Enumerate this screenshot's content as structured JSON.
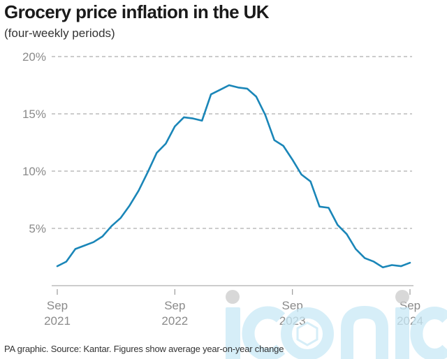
{
  "title": "Grocery price inflation in the UK",
  "subtitle": "(four-weekly periods)",
  "footer": "PA graphic. Source: Kantar. Figures show average year-on-year change",
  "watermark_text": "iconic",
  "colors": {
    "line": "#1a86b8",
    "grid": "#9a9a9a",
    "axis": "#999999",
    "tick_label": "#8a8a8a",
    "watermark": "#c9e9f6"
  },
  "chart_data": {
    "type": "line",
    "title": "Grocery price inflation in the UK",
    "subtitle": "(four-weekly periods)",
    "ylim": [
      0,
      20
    ],
    "yticks": [
      5,
      10,
      15,
      20
    ],
    "ytick_labels": [
      "5%",
      "10%",
      "15%",
      "20%"
    ],
    "grid": true,
    "x_tick_labels": [
      {
        "line1": "Sep",
        "line2": "2021",
        "index": 0
      },
      {
        "line1": "Sep",
        "line2": "2022",
        "index": 13
      },
      {
        "line1": "Sep",
        "line2": "2023",
        "index": 26
      },
      {
        "line1": "Sep",
        "line2": "2024",
        "index": 39
      }
    ],
    "series": [
      {
        "values": [
          1.7,
          2.1,
          3.2,
          3.5,
          3.8,
          4.3,
          5.2,
          5.9,
          7.0,
          8.3,
          9.9,
          11.6,
          12.4,
          13.9,
          14.7,
          14.6,
          14.4,
          16.7,
          17.1,
          17.5,
          17.3,
          17.2,
          16.5,
          14.9,
          12.7,
          12.2,
          11.0,
          9.7,
          9.1,
          6.9,
          6.8,
          5.3,
          4.5,
          3.2,
          2.4,
          2.1,
          1.6,
          1.8,
          1.7,
          2.0
        ]
      }
    ]
  }
}
